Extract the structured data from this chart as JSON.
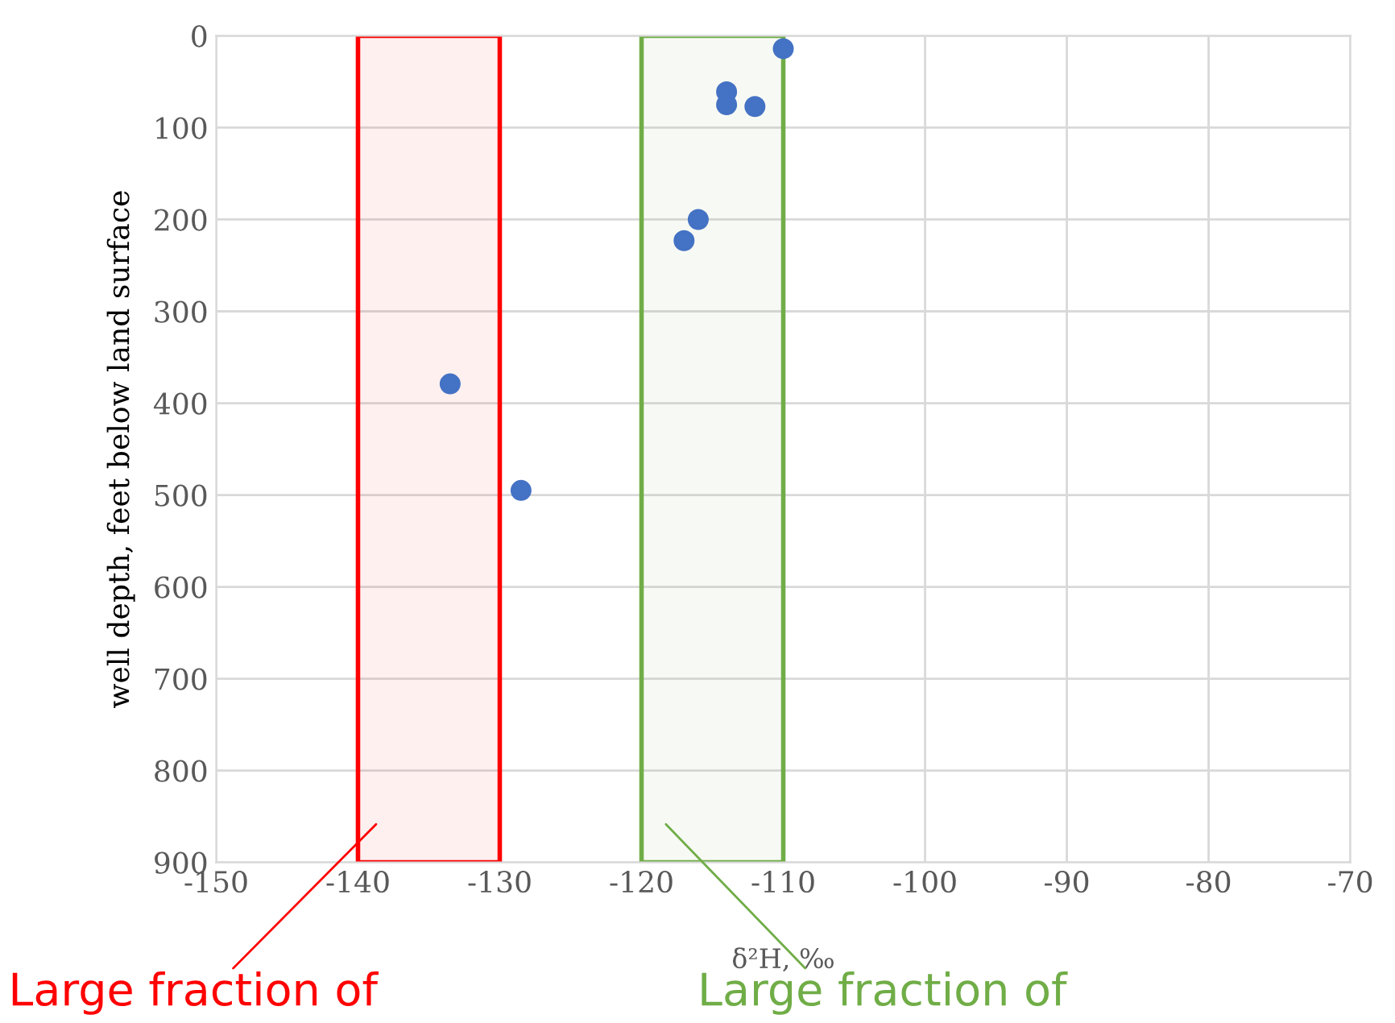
{
  "chart_data": {
    "type": "scatter",
    "xlabel": "δ²H, ‰",
    "ylabel": "well depth, feet below land surface",
    "x": [
      -110,
      -114,
      -114,
      -112,
      -116,
      -117,
      -133.5,
      -128.5
    ],
    "series": [
      {
        "color": "#4472c4",
        "values": [
          14,
          61,
          75,
          77,
          200,
          223,
          379,
          495
        ]
      }
    ],
    "xlim": [
      -150,
      -70
    ],
    "xticks": [
      -150,
      -140,
      -130,
      -120,
      -110,
      -100,
      -90,
      -80,
      -70
    ],
    "ylim": [
      900,
      0
    ],
    "yticks": [
      0,
      100,
      200,
      300,
      400,
      500,
      600,
      700,
      800,
      900
    ],
    "grid": true,
    "marker": "circle",
    "bands": [
      {
        "axis": "x",
        "from": -140,
        "to": -130,
        "color": "#ff0000"
      },
      {
        "axis": "x",
        "from": -120,
        "to": -110,
        "color": "#70ad47"
      }
    ],
    "annotations": [
      "Large fraction of",
      "Large fraction of"
    ]
  }
}
